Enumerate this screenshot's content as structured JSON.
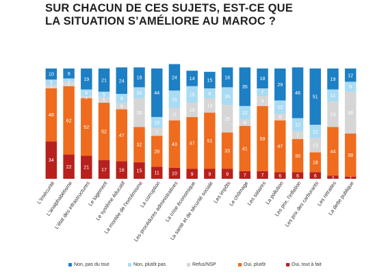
{
  "title": {
    "line1": "SUR CHACUN DE CES SUJETS, EST-CE QUE",
    "line2": "LA SITUATION S’AMÉLIORE AU MAROC ?"
  },
  "colors": {
    "non_pas_du_tout": "#1d7fc4",
    "non_plutot_pas": "#a9dbf3",
    "refus_nsp": "#d6d6d6",
    "oui_plutot": "#ef6c1e",
    "oui_tout_a_fait": "#b8201d"
  },
  "chart_data": {
    "type": "bar",
    "stacked": true,
    "ylim": [
      0,
      100
    ],
    "categories": [
      "L'insécurité",
      "L'analphabétisme",
      "L'état des infrastructures",
      "Le logement",
      "Le système éducatif",
      "La montée de l'extrémisme",
      "La corruption",
      "Les procédures administratives",
      "La crise économique",
      "La santé et de sécurité sociale",
      "Les impôts",
      "Le chômage",
      "Les salaires",
      "La pollution",
      "Les prix, l'inflation",
      "Les prix des carburants",
      "Les retraites",
      "La dette publique"
    ],
    "series": [
      {
        "name": "Oui, tout à fait",
        "color_key": "oui_tout_a_fait",
        "values": [
          34,
          22,
          21,
          17,
          16,
          15,
          11,
          10,
          9,
          9,
          9,
          7,
          7,
          6,
          6,
          6,
          3,
          2
        ]
      },
      {
        "name": "Oui, plutôt",
        "color_key": "oui_plutot",
        "values": [
          48,
          62,
          52,
          52,
          47,
          32,
          28,
          43,
          47,
          51,
          33,
          41,
          59,
          47,
          30,
          18,
          44,
          39
        ]
      },
      {
        "name": "Refus/NSP",
        "color_key": "refus_nsp",
        "values": [
          3,
          4,
          2,
          5,
          6,
          26,
          7,
          11,
          13,
          13,
          25,
          6,
          9,
          6,
          7,
          13,
          23,
          38
        ]
      },
      {
        "name": "Non, plutôt pas",
        "color_key": "non_plutot_pas",
        "values": [
          5,
          3,
          6,
          5,
          8,
          10,
          10,
          16,
          15,
          9,
          16,
          12,
          7,
          12,
          12,
          12,
          11,
          9
        ]
      },
      {
        "name": "Non, pas du tout",
        "color_key": "non_pas_du_tout",
        "values": [
          10,
          9,
          19,
          21,
          24,
          18,
          44,
          24,
          14,
          15,
          18,
          35,
          18,
          29,
          46,
          51,
          19,
          12
        ]
      }
    ],
    "legend": {
      "position": "bottom",
      "items": [
        "Non, pas du tout",
        "Non, plutôt pas",
        "Refus/NSP",
        "Oui, plutôt",
        "Oui, tout à fait"
      ]
    }
  }
}
